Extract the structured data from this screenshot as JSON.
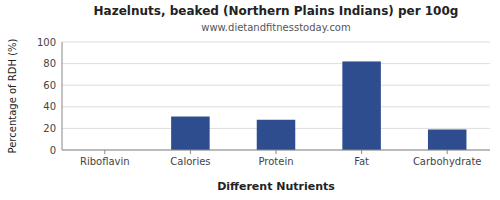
{
  "chart_data": {
    "type": "bar",
    "title": "Hazelnuts, beaked (Northern Plains Indians) per 100g",
    "subtitle": "www.dietandfitnesstoday.com",
    "xlabel": "Different Nutrients",
    "ylabel": "Percentage of RDH (%)",
    "categories": [
      "Riboflavin",
      "Calories",
      "Protein",
      "Fat",
      "Carbohydrate"
    ],
    "values": [
      0,
      31,
      28,
      82,
      19
    ],
    "color": "#2e4d8e",
    "ylim": [
      0,
      100
    ],
    "yticks": [
      0,
      20,
      40,
      60,
      80,
      100
    ],
    "grid": true
  }
}
